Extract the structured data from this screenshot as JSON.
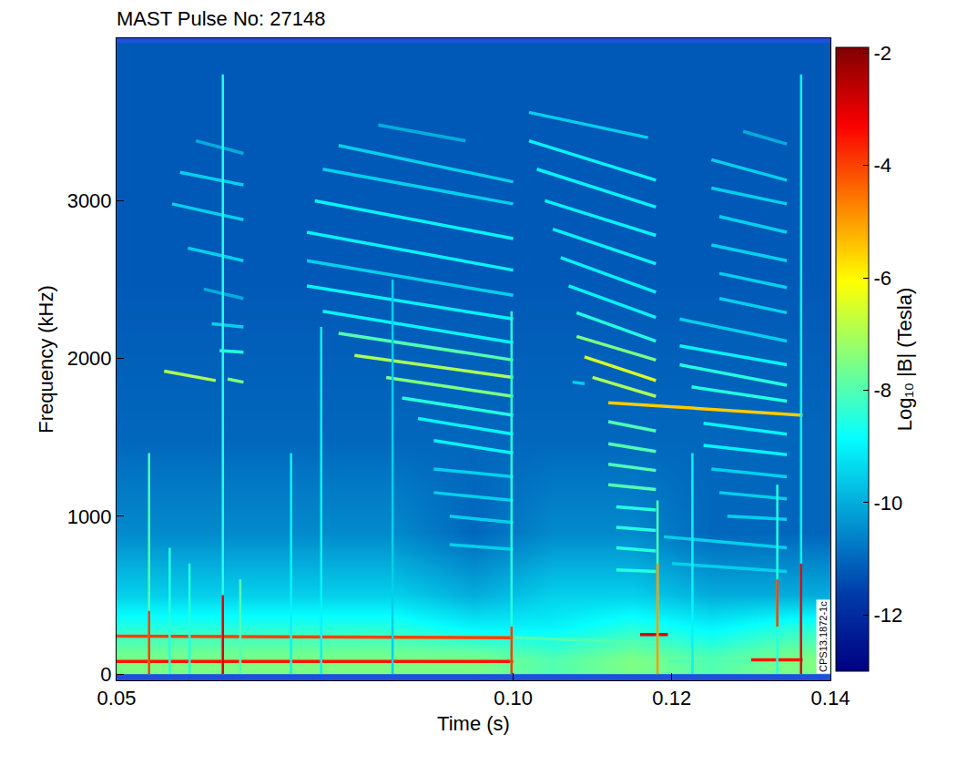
{
  "chart_data": {
    "type": "heatmap",
    "title": "MAST Pulse No: 27148",
    "x_label": "Time (s)",
    "y_label": "Frequency (kHz)",
    "xlim": [
      0.05,
      0.14
    ],
    "ylim": [
      -40,
      4030
    ],
    "xticks": [
      0.05,
      {
        "value": 0.1,
        "label": "0.10"
      },
      0.12,
      0.14
    ],
    "yticks": [
      0,
      1000,
      2000,
      3000
    ],
    "colorbar": {
      "label": "Log₁₀ |B| (Tesla)",
      "range": [
        -13,
        -1.9
      ],
      "ticks": [
        -2,
        -4,
        -6,
        -8,
        -10,
        -12
      ]
    },
    "annotations": [
      "CPS13.1872-1c"
    ],
    "cells": {
      "x": [
        0.055,
        0.065,
        0.075,
        0.085,
        0.095,
        0.105,
        0.115,
        0.125,
        0.135
      ],
      "y": [
        100,
        300,
        500,
        700,
        900,
        1500,
        2500,
        3500
      ],
      "z": [
        [
          -7.5,
          -7.5,
          -7.5,
          -7.5,
          -7.5,
          -8,
          -7.5,
          -8,
          -7.5
        ],
        [
          -8.5,
          -8.5,
          -8.5,
          -8.5,
          -9,
          -9,
          -8.5,
          -9,
          -8.5
        ],
        [
          -9.5,
          -9.5,
          -9.5,
          -9.5,
          -10,
          -9.5,
          -9.5,
          -10,
          -10
        ],
        [
          -10,
          -10,
          -10,
          -10,
          -10.5,
          -10,
          -10,
          -10.5,
          -10.5
        ],
        [
          -10.5,
          -10.5,
          -10.5,
          -10.5,
          -11,
          -10.5,
          -10.5,
          -11,
          -11
        ],
        [
          -11,
          -11,
          -11,
          -11,
          -11,
          -11,
          -11,
          -11,
          -11
        ],
        [
          -11.2,
          -11.2,
          -11.2,
          -11.2,
          -11.2,
          -11.2,
          -11.2,
          -11.2,
          -11.2
        ],
        [
          -11.2,
          -11.2,
          -11.2,
          -11.2,
          -11.2,
          -11.2,
          -11.2,
          -11.2,
          -11.2
        ]
      ]
    },
    "segments": [
      {
        "x": [
          0.06,
          0.066
        ],
        "y": [
          3380,
          3300
        ],
        "value": -10
      },
      {
        "x": [
          0.058,
          0.066
        ],
        "y": [
          3180,
          3100
        ],
        "value": -9.5
      },
      {
        "x": [
          0.057,
          0.066
        ],
        "y": [
          2980,
          2880
        ],
        "value": -9.5
      },
      {
        "x": [
          0.059,
          0.066
        ],
        "y": [
          2700,
          2620
        ],
        "value": -9.5
      },
      {
        "x": [
          0.061,
          0.066
        ],
        "y": [
          2440,
          2380
        ],
        "value": -10
      },
      {
        "x": [
          0.062,
          0.066
        ],
        "y": [
          2220,
          2200
        ],
        "value": -9.5
      },
      {
        "x": [
          0.063,
          0.066
        ],
        "y": [
          2050,
          2040
        ],
        "value": -8.5
      },
      {
        "x": [
          0.056,
          0.0625
        ],
        "y": [
          1920,
          1860
        ],
        "value": -7
      },
      {
        "x": [
          0.064,
          0.066
        ],
        "y": [
          1870,
          1850
        ],
        "value": -7.5
      },
      {
        "x": [
          0.083,
          0.094
        ],
        "y": [
          3480,
          3380
        ],
        "value": -10
      },
      {
        "x": [
          0.078,
          0.1
        ],
        "y": [
          3350,
          3120
        ],
        "value": -9.5
      },
      {
        "x": [
          0.076,
          0.1
        ],
        "y": [
          3200,
          2980
        ],
        "value": -9.5
      },
      {
        "x": [
          0.075,
          0.1
        ],
        "y": [
          3000,
          2760
        ],
        "value": -9
      },
      {
        "x": [
          0.074,
          0.1
        ],
        "y": [
          2800,
          2560
        ],
        "value": -9
      },
      {
        "x": [
          0.074,
          0.1
        ],
        "y": [
          2620,
          2400
        ],
        "value": -9.5
      },
      {
        "x": [
          0.074,
          0.1
        ],
        "y": [
          2460,
          2250
        ],
        "value": -9
      },
      {
        "x": [
          0.076,
          0.1
        ],
        "y": [
          2300,
          2100
        ],
        "value": -9
      },
      {
        "x": [
          0.078,
          0.1
        ],
        "y": [
          2160,
          1990
        ],
        "value": -8
      },
      {
        "x": [
          0.08,
          0.1
        ],
        "y": [
          2020,
          1880
        ],
        "value": -7
      },
      {
        "x": [
          0.084,
          0.1
        ],
        "y": [
          1880,
          1760
        ],
        "value": -7.5
      },
      {
        "x": [
          0.086,
          0.1
        ],
        "y": [
          1750,
          1640
        ],
        "value": -8.5
      },
      {
        "x": [
          0.088,
          0.1
        ],
        "y": [
          1620,
          1520
        ],
        "value": -9
      },
      {
        "x": [
          0.09,
          0.1
        ],
        "y": [
          1480,
          1400
        ],
        "value": -9
      },
      {
        "x": [
          0.09,
          0.1
        ],
        "y": [
          1300,
          1250
        ],
        "value": -9.5
      },
      {
        "x": [
          0.09,
          0.1
        ],
        "y": [
          1150,
          1100
        ],
        "value": -9.5
      },
      {
        "x": [
          0.092,
          0.1
        ],
        "y": [
          1000,
          960
        ],
        "value": -9.5
      },
      {
        "x": [
          0.092,
          0.1
        ],
        "y": [
          820,
          790
        ],
        "value": -9.5
      },
      {
        "x": [
          0.102,
          0.117
        ],
        "y": [
          3560,
          3400
        ],
        "value": -9.5
      },
      {
        "x": [
          0.102,
          0.118
        ],
        "y": [
          3380,
          3130
        ],
        "value": -9
      },
      {
        "x": [
          0.103,
          0.118
        ],
        "y": [
          3200,
          2960
        ],
        "value": -9
      },
      {
        "x": [
          0.104,
          0.118
        ],
        "y": [
          3000,
          2780
        ],
        "value": -9
      },
      {
        "x": [
          0.105,
          0.118
        ],
        "y": [
          2820,
          2600
        ],
        "value": -9
      },
      {
        "x": [
          0.106,
          0.118
        ],
        "y": [
          2640,
          2420
        ],
        "value": -9
      },
      {
        "x": [
          0.107,
          0.118
        ],
        "y": [
          2460,
          2260
        ],
        "value": -9
      },
      {
        "x": [
          0.108,
          0.118
        ],
        "y": [
          2290,
          2110
        ],
        "value": -8.5
      },
      {
        "x": [
          0.108,
          0.118
        ],
        "y": [
          2140,
          1990
        ],
        "value": -7.5
      },
      {
        "x": [
          0.1075,
          0.109
        ],
        "y": [
          1850,
          1840
        ],
        "value": -9.5
      },
      {
        "x": [
          0.109,
          0.118
        ],
        "y": [
          2010,
          1860
        ],
        "value": -6.5
      },
      {
        "x": [
          0.11,
          0.118
        ],
        "y": [
          1880,
          1760
        ],
        "value": -7
      },
      {
        "x": [
          0.112,
          0.1365
        ],
        "y": [
          1720,
          1640
        ],
        "value": -5.5
      },
      {
        "x": [
          0.112,
          0.118
        ],
        "y": [
          1600,
          1540
        ],
        "value": -8
      },
      {
        "x": [
          0.112,
          0.118
        ],
        "y": [
          1460,
          1410
        ],
        "value": -8
      },
      {
        "x": [
          0.112,
          0.118
        ],
        "y": [
          1330,
          1290
        ],
        "value": -8
      },
      {
        "x": [
          0.112,
          0.118
        ],
        "y": [
          1200,
          1170
        ],
        "value": -8
      },
      {
        "x": [
          0.113,
          0.118
        ],
        "y": [
          1060,
          1040
        ],
        "value": -8.5
      },
      {
        "x": [
          0.113,
          0.118
        ],
        "y": [
          930,
          910
        ],
        "value": -8.5
      },
      {
        "x": [
          0.113,
          0.118
        ],
        "y": [
          800,
          780
        ],
        "value": -8.5
      },
      {
        "x": [
          0.113,
          0.118
        ],
        "y": [
          660,
          650
        ],
        "value": -8.5
      },
      {
        "x": [
          0.129,
          0.1345
        ],
        "y": [
          3440,
          3360
        ],
        "value": -10
      },
      {
        "x": [
          0.125,
          0.1345
        ],
        "y": [
          3260,
          3130
        ],
        "value": -9.5
      },
      {
        "x": [
          0.125,
          0.1345
        ],
        "y": [
          3080,
          2980
        ],
        "value": -9.5
      },
      {
        "x": [
          0.126,
          0.1345
        ],
        "y": [
          2900,
          2800
        ],
        "value": -9.5
      },
      {
        "x": [
          0.125,
          0.1345
        ],
        "y": [
          2720,
          2620
        ],
        "value": -9.5
      },
      {
        "x": [
          0.126,
          0.1345
        ],
        "y": [
          2540,
          2450
        ],
        "value": -9.5
      },
      {
        "x": [
          0.126,
          0.1345
        ],
        "y": [
          2380,
          2290
        ],
        "value": -9.5
      },
      {
        "x": [
          0.121,
          0.1345
        ],
        "y": [
          2250,
          2110
        ],
        "value": -9.5
      },
      {
        "x": [
          0.121,
          0.1345
        ],
        "y": [
          2080,
          1960
        ],
        "value": -9
      },
      {
        "x": [
          0.121,
          0.1345
        ],
        "y": [
          1960,
          1830
        ],
        "value": -8.5
      },
      {
        "x": [
          0.1225,
          0.1345
        ],
        "y": [
          1820,
          1730
        ],
        "value": -8.5
      },
      {
        "x": [
          0.124,
          0.1345
        ],
        "y": [
          1590,
          1520
        ],
        "value": -9
      },
      {
        "x": [
          0.124,
          0.1345
        ],
        "y": [
          1450,
          1390
        ],
        "value": -9
      },
      {
        "x": [
          0.125,
          0.1345
        ],
        "y": [
          1300,
          1250
        ],
        "value": -9.5
      },
      {
        "x": [
          0.126,
          0.1345
        ],
        "y": [
          1150,
          1110
        ],
        "value": -9.5
      },
      {
        "x": [
          0.127,
          0.1345
        ],
        "y": [
          1000,
          980
        ],
        "value": -9.5
      },
      {
        "x": [
          0.119,
          0.1345
        ],
        "y": [
          870,
          800
        ],
        "value": -9.5
      },
      {
        "x": [
          0.12,
          0.1345
        ],
        "y": [
          700,
          650
        ],
        "value": -9.5
      },
      {
        "x": [
          0.05,
          0.1
        ],
        "y": [
          240,
          230
        ],
        "value": -4
      },
      {
        "x": [
          0.05,
          0.1
        ],
        "y": [
          80,
          80
        ],
        "value": -3.5
      },
      {
        "x": [
          0.1,
          0.118
        ],
        "y": [
          230,
          200
        ],
        "value": -8
      },
      {
        "x": [
          0.116,
          0.1195
        ],
        "y": [
          250,
          250
        ],
        "value": -3
      },
      {
        "x": [
          0.1195,
          0.13
        ],
        "y": [
          80,
          80
        ],
        "value": -8
      },
      {
        "x": [
          0.13,
          0.1365
        ],
        "y": [
          90,
          90
        ],
        "value": -3.5
      },
      {
        "x": [
          0.0541,
          0.0541
        ],
        "y": [
          0,
          1400
        ],
        "value": -8
      },
      {
        "x": [
          0.0541,
          0.0541
        ],
        "y": [
          0,
          400
        ],
        "value": -4
      },
      {
        "x": [
          0.0567,
          0.0567
        ],
        "y": [
          0,
          800
        ],
        "value": -8.5
      },
      {
        "x": [
          0.0592,
          0.0592
        ],
        "y": [
          0,
          700
        ],
        "value": -8.5
      },
      {
        "x": [
          0.0634,
          0.0634
        ],
        "y": [
          0,
          3800
        ],
        "value": -8.5
      },
      {
        "x": [
          0.0634,
          0.0634
        ],
        "y": [
          0,
          500
        ],
        "value": -3
      },
      {
        "x": [
          0.0656,
          0.0656
        ],
        "y": [
          0,
          600
        ],
        "value": -8
      },
      {
        "x": [
          0.072,
          0.072
        ],
        "y": [
          0,
          1400
        ],
        "value": -9
      },
      {
        "x": [
          0.0758,
          0.0758
        ],
        "y": [
          0,
          2200
        ],
        "value": -9
      },
      {
        "x": [
          0.0848,
          0.0848
        ],
        "y": [
          0,
          2500
        ],
        "value": -9.5
      },
      {
        "x": [
          0.0998,
          0.0998
        ],
        "y": [
          0,
          2300
        ],
        "value": -8.5
      },
      {
        "x": [
          0.0998,
          0.0998
        ],
        "y": [
          0,
          300
        ],
        "value": -4
      },
      {
        "x": [
          0.1182,
          0.1182
        ],
        "y": [
          0,
          1100
        ],
        "value": -8
      },
      {
        "x": [
          0.1182,
          0.1182
        ],
        "y": [
          0,
          700
        ],
        "value": -5
      },
      {
        "x": [
          0.1226,
          0.1226
        ],
        "y": [
          0,
          1400
        ],
        "value": -9
      },
      {
        "x": [
          0.1333,
          0.1333
        ],
        "y": [
          0,
          1200
        ],
        "value": -8.5
      },
      {
        "x": [
          0.1333,
          0.1333
        ],
        "y": [
          300,
          600
        ],
        "value": -4
      },
      {
        "x": [
          0.1363,
          0.1363
        ],
        "y": [
          0,
          3800
        ],
        "value": -9
      },
      {
        "x": [
          0.1363,
          0.1363
        ],
        "y": [
          0,
          700
        ],
        "value": -3
      }
    ]
  }
}
